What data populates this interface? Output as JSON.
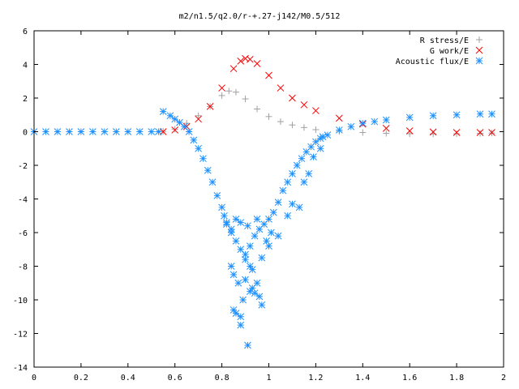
{
  "chart_data": {
    "type": "scatter",
    "title": "m2/n1.5/q2.0/r-+.27-j142/M0.5/512",
    "xlabel": "",
    "ylabel": "",
    "xlim": [
      0,
      2
    ],
    "ylim": [
      -14,
      6
    ],
    "x_ticks": [
      "0",
      "0.2",
      "0.4",
      "0.6",
      "0.8",
      "1",
      "1.2",
      "1.4",
      "1.6",
      "1.8",
      "2"
    ],
    "y_ticks": [
      "6",
      "4",
      "2",
      "0",
      "-2",
      "-4",
      "-6",
      "-8",
      "-10",
      "-12",
      "-14"
    ],
    "x_tick_values": [
      0,
      0.2,
      0.4,
      0.6,
      0.8,
      1.0,
      1.2,
      1.4,
      1.6,
      1.8,
      2.0
    ],
    "y_tick_values": [
      6,
      4,
      2,
      0,
      -2,
      -4,
      -6,
      -8,
      -10,
      -12,
      -14
    ],
    "grid": false,
    "legend_position": "top-right",
    "series": [
      {
        "name": "R stress/E",
        "marker": "plus",
        "color": "#a0a0a0",
        "x": [
          0.55,
          0.6,
          0.65,
          0.7,
          0.75,
          0.8,
          0.83,
          0.86,
          0.9,
          0.95,
          1.0,
          1.05,
          1.1,
          1.15,
          1.2,
          1.3,
          1.4,
          1.5,
          1.6,
          1.7,
          1.8,
          1.9,
          1.95
        ],
        "y": [
          0.02,
          0.15,
          0.5,
          0.95,
          1.5,
          2.15,
          2.42,
          2.35,
          1.95,
          1.35,
          0.9,
          0.6,
          0.4,
          0.25,
          0.12,
          0.02,
          -0.05,
          -0.1,
          -0.12,
          -0.13,
          -0.12,
          -0.1,
          -0.08
        ]
      },
      {
        "name": "G work/E",
        "marker": "cross",
        "color": "#ff0000",
        "x": [
          0.55,
          0.6,
          0.65,
          0.7,
          0.75,
          0.8,
          0.85,
          0.88,
          0.9,
          0.92,
          0.95,
          1.0,
          1.05,
          1.1,
          1.15,
          1.2,
          1.3,
          1.4,
          1.5,
          1.6,
          1.7,
          1.8,
          1.9,
          1.95
        ],
        "y": [
          0.0,
          0.1,
          0.3,
          0.75,
          1.5,
          2.6,
          3.75,
          4.2,
          4.35,
          4.3,
          4.05,
          3.35,
          2.6,
          2.0,
          1.6,
          1.25,
          0.8,
          0.45,
          0.2,
          0.05,
          -0.02,
          -0.05,
          -0.05,
          -0.05
        ]
      },
      {
        "name": "Acoustic flux/E",
        "marker": "star",
        "color": "#1e90ff",
        "x": [
          0.0,
          0.05,
          0.1,
          0.15,
          0.2,
          0.25,
          0.3,
          0.35,
          0.4,
          0.45,
          0.5,
          0.53,
          0.55,
          0.58,
          0.6,
          0.62,
          0.64,
          0.66,
          0.68,
          0.7,
          0.72,
          0.74,
          0.76,
          0.78,
          0.8,
          0.81,
          0.82,
          0.84,
          0.86,
          0.88,
          0.9,
          0.92,
          0.94,
          0.96,
          0.98,
          1.0,
          1.02,
          1.04,
          1.06,
          1.08,
          1.1,
          1.12,
          1.14,
          1.16,
          1.18,
          1.2,
          1.22,
          1.25,
          1.3,
          1.35,
          1.4,
          1.45,
          1.5,
          1.6,
          1.7,
          1.8,
          1.9,
          1.95,
          0.84,
          0.85,
          0.87,
          0.9,
          0.92,
          0.93,
          0.95,
          0.97,
          0.99,
          1.01,
          0.85,
          0.86,
          0.88,
          0.88,
          0.89,
          0.91,
          0.93,
          0.94,
          0.96,
          0.9,
          0.92,
          0.97,
          0.82,
          0.84,
          0.86,
          0.88,
          0.91,
          0.95,
          1.0,
          1.04,
          1.08,
          1.1,
          1.13,
          1.15,
          1.17,
          1.19,
          1.22,
          1.23
        ],
        "y": [
          0.0,
          0.0,
          0.0,
          0.0,
          0.0,
          0.0,
          0.0,
          0.0,
          0.0,
          0.0,
          0.0,
          0.0,
          1.2,
          0.95,
          0.75,
          0.55,
          0.3,
          0.0,
          -0.5,
          -1.0,
          -1.6,
          -2.3,
          -3.0,
          -3.8,
          -4.5,
          -5.0,
          -5.4,
          -6.0,
          -6.5,
          -7.0,
          -7.3,
          -6.8,
          -6.2,
          -5.8,
          -5.5,
          -5.2,
          -4.8,
          -4.2,
          -3.5,
          -3.0,
          -2.5,
          -2.0,
          -1.6,
          -1.2,
          -0.9,
          -0.6,
          -0.4,
          -0.2,
          0.1,
          0.3,
          0.5,
          0.6,
          0.7,
          0.85,
          0.95,
          1.0,
          1.05,
          1.05,
          -8.0,
          -8.5,
          -9.0,
          -8.8,
          -9.5,
          -8.2,
          -9.0,
          -7.5,
          -6.5,
          -6.0,
          -10.6,
          -10.8,
          -11.0,
          -11.5,
          -10.0,
          -12.7,
          -9.3,
          -9.6,
          -9.8,
          -7.6,
          -8.0,
          -10.3,
          -5.5,
          -5.8,
          -5.2,
          -5.4,
          -5.6,
          -5.2,
          -6.8,
          -6.2,
          -5.0,
          -4.3,
          -4.5,
          -3.0,
          -2.5,
          -1.5,
          -1.0,
          -0.3
        ]
      }
    ]
  }
}
